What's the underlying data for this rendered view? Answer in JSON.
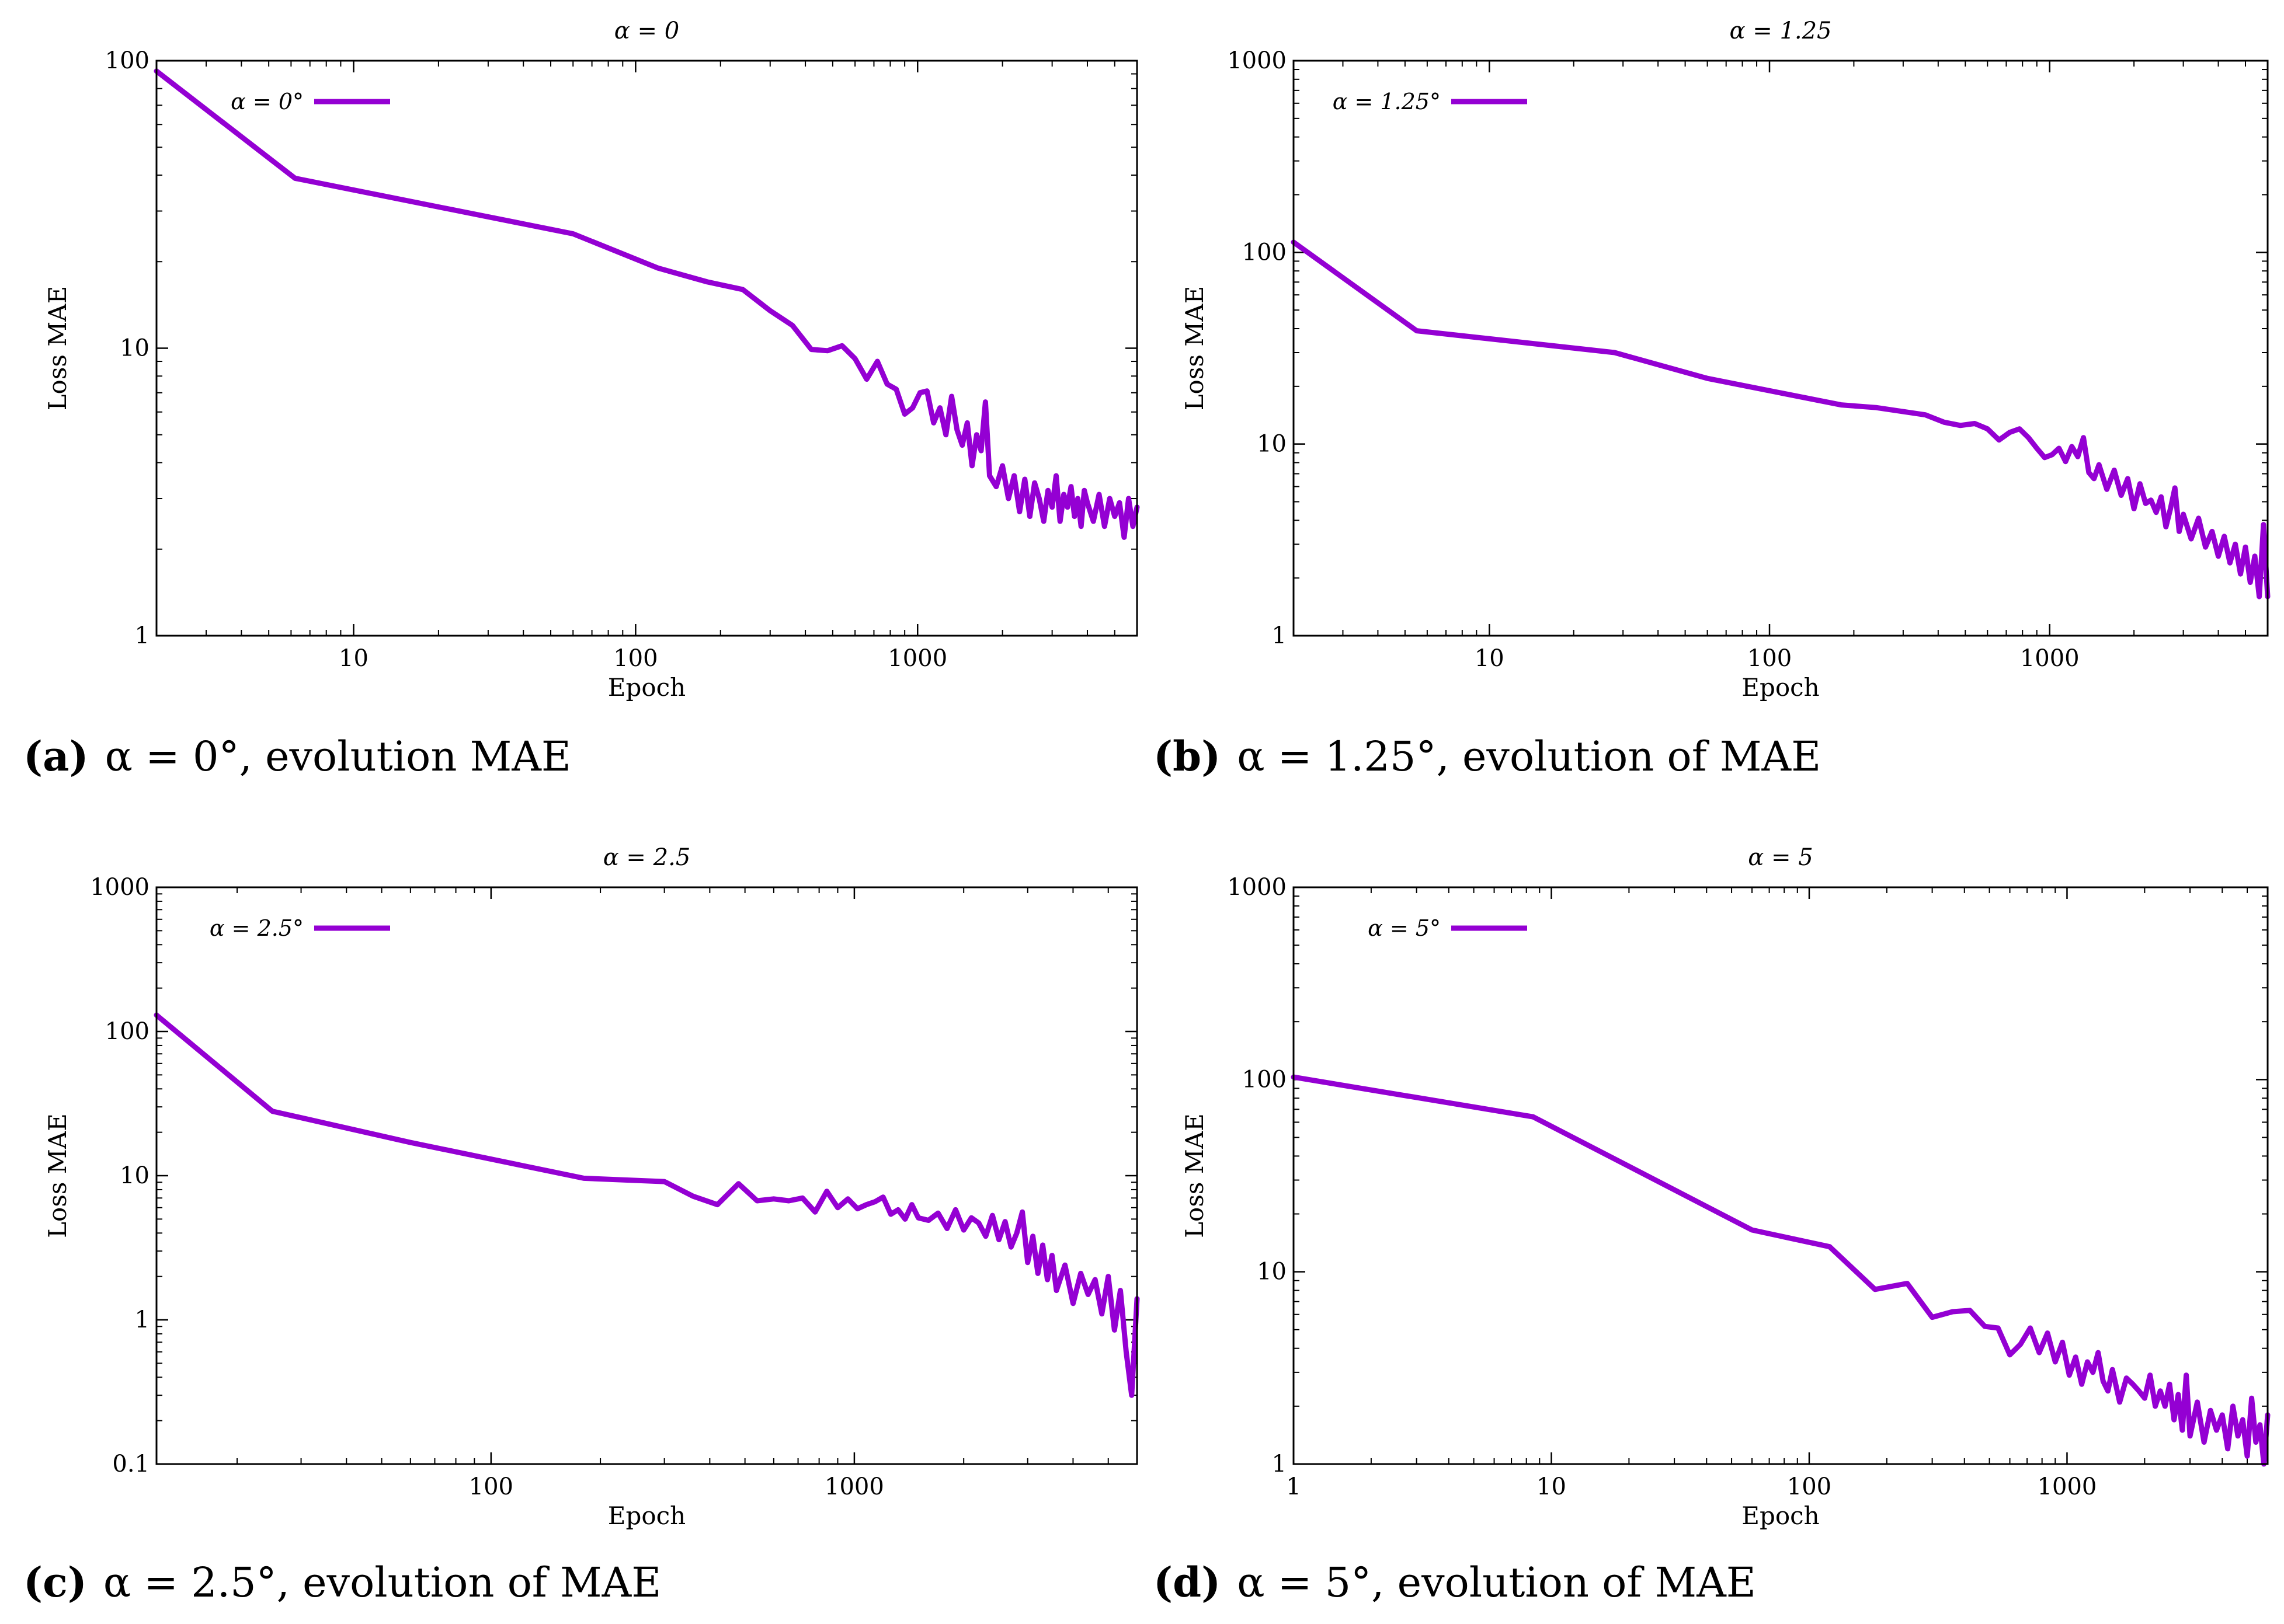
{
  "chart_data": [
    {
      "type": "line",
      "title": "α = 0",
      "xlabel": "Epoch",
      "ylabel": "Loss MAE",
      "xscale": "log",
      "yscale": "log",
      "xlim": [
        2,
        6000
      ],
      "ylim": [
        1,
        100
      ],
      "xticks": [
        10,
        100,
        1000
      ],
      "yticks": [
        1,
        10,
        100
      ],
      "xticklabels": [
        "10",
        "100",
        "1000"
      ],
      "yticklabels": [
        "1",
        "10",
        "100"
      ],
      "legend": "top-left",
      "caption_label": "(a)",
      "caption_text": "α = 0°, evolution MAE",
      "series": [
        {
          "name": "α = 0°",
          "color": "#9400d3",
          "x": [
            2,
            6.2,
            20,
            60,
            120,
            180,
            240,
            300,
            360,
            420,
            480,
            540,
            600,
            660,
            720,
            780,
            840,
            900,
            960,
            1020,
            1080,
            1140,
            1200,
            1260,
            1320,
            1380,
            1440,
            1500,
            1560,
            1620,
            1680,
            1740,
            1800,
            1900,
            2000,
            2100,
            2200,
            2300,
            2400,
            2500,
            2600,
            2700,
            2800,
            2900,
            3000,
            3100,
            3200,
            3300,
            3400,
            3500,
            3600,
            3700,
            3800,
            3900,
            4000,
            4200,
            4400,
            4600,
            4800,
            5000,
            5200,
            5400,
            5600,
            5800,
            6000
          ],
          "y": [
            92,
            39,
            31,
            25,
            19,
            17,
            16,
            13.5,
            12,
            9.9,
            9.8,
            10.2,
            9.2,
            7.8,
            9.0,
            7.5,
            7.2,
            5.9,
            6.2,
            7.0,
            7.1,
            5.5,
            6.2,
            5.0,
            6.8,
            5.2,
            4.6,
            5.5,
            3.9,
            5.0,
            4.4,
            6.5,
            3.6,
            3.3,
            3.9,
            3.0,
            3.6,
            2.7,
            3.5,
            2.6,
            3.4,
            3.0,
            2.5,
            3.2,
            2.8,
            3.6,
            2.5,
            3.1,
            2.8,
            3.3,
            2.6,
            3.0,
            2.4,
            3.2,
            2.9,
            2.5,
            3.1,
            2.4,
            3.0,
            2.6,
            2.9,
            2.2,
            3.0,
            2.4,
            2.8
          ]
        }
      ]
    },
    {
      "type": "line",
      "title": "α = 1.25",
      "xlabel": "Epoch",
      "ylabel": "Loss MAE",
      "xscale": "log",
      "yscale": "log",
      "xlim": [
        2,
        6000
      ],
      "ylim": [
        1,
        1000
      ],
      "xticks": [
        10,
        100,
        1000
      ],
      "yticks": [
        1,
        10,
        100,
        1000
      ],
      "xticklabels": [
        "10",
        "100",
        "1000"
      ],
      "yticklabels": [
        "1",
        "10",
        "100",
        "1000"
      ],
      "legend": "top-left",
      "caption_label": "(b)",
      "caption_text": "α = 1.25°, evolution of MAE",
      "series": [
        {
          "name": "α = 1.25°",
          "color": "#9400d3",
          "x": [
            2,
            5.5,
            28,
            60,
            180,
            240,
            360,
            420,
            480,
            540,
            600,
            660,
            720,
            780,
            840,
            900,
            960,
            1020,
            1080,
            1140,
            1200,
            1260,
            1320,
            1380,
            1440,
            1500,
            1600,
            1700,
            1800,
            1900,
            2000,
            2100,
            2200,
            2300,
            2400,
            2500,
            2600,
            2700,
            2800,
            2900,
            3000,
            3200,
            3400,
            3600,
            3800,
            4000,
            4200,
            4400,
            4600,
            4800,
            5000,
            5200,
            5400,
            5600,
            5800,
            6000
          ],
          "y": [
            113,
            39,
            30,
            22,
            16,
            15.5,
            14.2,
            13,
            12.5,
            12.8,
            12,
            10.5,
            11.5,
            12,
            10.8,
            9.5,
            8.5,
            8.8,
            9.5,
            8.1,
            9.7,
            8.6,
            10.8,
            7.1,
            6.6,
            7.8,
            5.8,
            7.3,
            5.4,
            6.6,
            4.6,
            6.2,
            4.9,
            5.1,
            4.4,
            5.3,
            3.7,
            4.6,
            5.9,
            3.5,
            4.3,
            3.2,
            4.1,
            2.9,
            3.5,
            2.6,
            3.3,
            2.4,
            3.0,
            2.1,
            2.9,
            1.9,
            2.6,
            1.6,
            3.8,
            1.6
          ]
        }
      ]
    },
    {
      "type": "line",
      "title": "α = 2.5",
      "xlabel": "Epoch",
      "ylabel": "Loss MAE",
      "xscale": "log",
      "yscale": "log",
      "xlim": [
        12,
        6000
      ],
      "ylim": [
        0.1,
        1000
      ],
      "xticks": [
        100,
        1000
      ],
      "yticks": [
        0.1,
        1,
        10,
        100,
        1000
      ],
      "xticklabels": [
        "100",
        "1000"
      ],
      "yticklabels": [
        "0.1",
        "1",
        "10",
        "100",
        "1000"
      ],
      "legend": "top-left",
      "caption_label": "(c)",
      "caption_text": "α = 2.5°, evolution of MAE",
      "series": [
        {
          "name": "α = 2.5°",
          "color": "#9400d3",
          "x": [
            12,
            25,
            60,
            180,
            300,
            360,
            420,
            480,
            540,
            600,
            660,
            720,
            780,
            840,
            900,
            960,
            1020,
            1080,
            1140,
            1200,
            1260,
            1320,
            1380,
            1440,
            1500,
            1600,
            1700,
            1800,
            1900,
            2000,
            2100,
            2200,
            2300,
            2400,
            2500,
            2600,
            2700,
            2800,
            2900,
            3000,
            3100,
            3200,
            3300,
            3400,
            3500,
            3600,
            3800,
            4000,
            4200,
            4400,
            4600,
            4800,
            5000,
            5200,
            5400,
            5600,
            5800,
            6000
          ],
          "y": [
            130,
            28,
            17,
            9.6,
            9.1,
            7.2,
            6.3,
            8.8,
            6.7,
            6.9,
            6.7,
            7.0,
            5.6,
            7.8,
            6.0,
            6.9,
            5.9,
            6.3,
            6.6,
            7.1,
            5.4,
            5.8,
            5.0,
            6.3,
            5.1,
            4.9,
            5.5,
            4.3,
            5.8,
            4.2,
            5.1,
            4.7,
            3.8,
            5.3,
            3.6,
            4.8,
            3.2,
            4.0,
            5.6,
            2.5,
            3.8,
            2.1,
            3.3,
            1.9,
            2.8,
            1.6,
            2.4,
            1.3,
            2.1,
            1.5,
            1.9,
            1.1,
            2.0,
            0.85,
            1.6,
            0.6,
            0.3,
            1.4
          ]
        }
      ]
    },
    {
      "type": "line",
      "title": "α = 5",
      "xlabel": "Epoch",
      "ylabel": "Loss MAE",
      "xscale": "log",
      "yscale": "log",
      "xlim": [
        1,
        6000
      ],
      "ylim": [
        1,
        1000
      ],
      "xticks": [
        1,
        10,
        100,
        1000
      ],
      "yticks": [
        1,
        10,
        100,
        1000
      ],
      "xticklabels": [
        "1",
        "10",
        "100",
        "1000"
      ],
      "yticklabels": [
        "1",
        "10",
        "100",
        "1000"
      ],
      "legend": "top-left",
      "caption_label": "(d)",
      "caption_text": "α = 5°, evolution of MAE",
      "series": [
        {
          "name": "α = 5°",
          "color": "#9400d3",
          "x": [
            1,
            8.5,
            60,
            120,
            180,
            240,
            300,
            360,
            420,
            480,
            540,
            600,
            660,
            720,
            780,
            840,
            900,
            960,
            1020,
            1080,
            1140,
            1200,
            1260,
            1320,
            1380,
            1440,
            1500,
            1600,
            1700,
            1800,
            1900,
            2000,
            2100,
            2200,
            2300,
            2400,
            2500,
            2600,
            2700,
            2800,
            2900,
            3000,
            3200,
            3400,
            3600,
            3800,
            4000,
            4200,
            4400,
            4600,
            4800,
            5000,
            5200,
            5400,
            5600,
            5800,
            6000
          ],
          "y": [
            103,
            64,
            16.5,
            13.5,
            8.1,
            8.7,
            5.8,
            6.2,
            6.3,
            5.2,
            5.1,
            3.7,
            4.2,
            5.1,
            3.8,
            4.8,
            3.4,
            4.3,
            2.9,
            3.6,
            2.6,
            3.4,
            3.0,
            3.8,
            2.7,
            2.4,
            3.1,
            2.1,
            2.8,
            2.6,
            2.4,
            2.2,
            2.9,
            2.0,
            2.4,
            2.0,
            2.6,
            1.7,
            2.3,
            1.5,
            2.9,
            1.4,
            2.1,
            1.3,
            1.9,
            1.5,
            1.8,
            1.2,
            2.0,
            1.4,
            1.7,
            1.1,
            2.2,
            1.3,
            1.6,
            1.0,
            1.8
          ]
        }
      ]
    }
  ]
}
